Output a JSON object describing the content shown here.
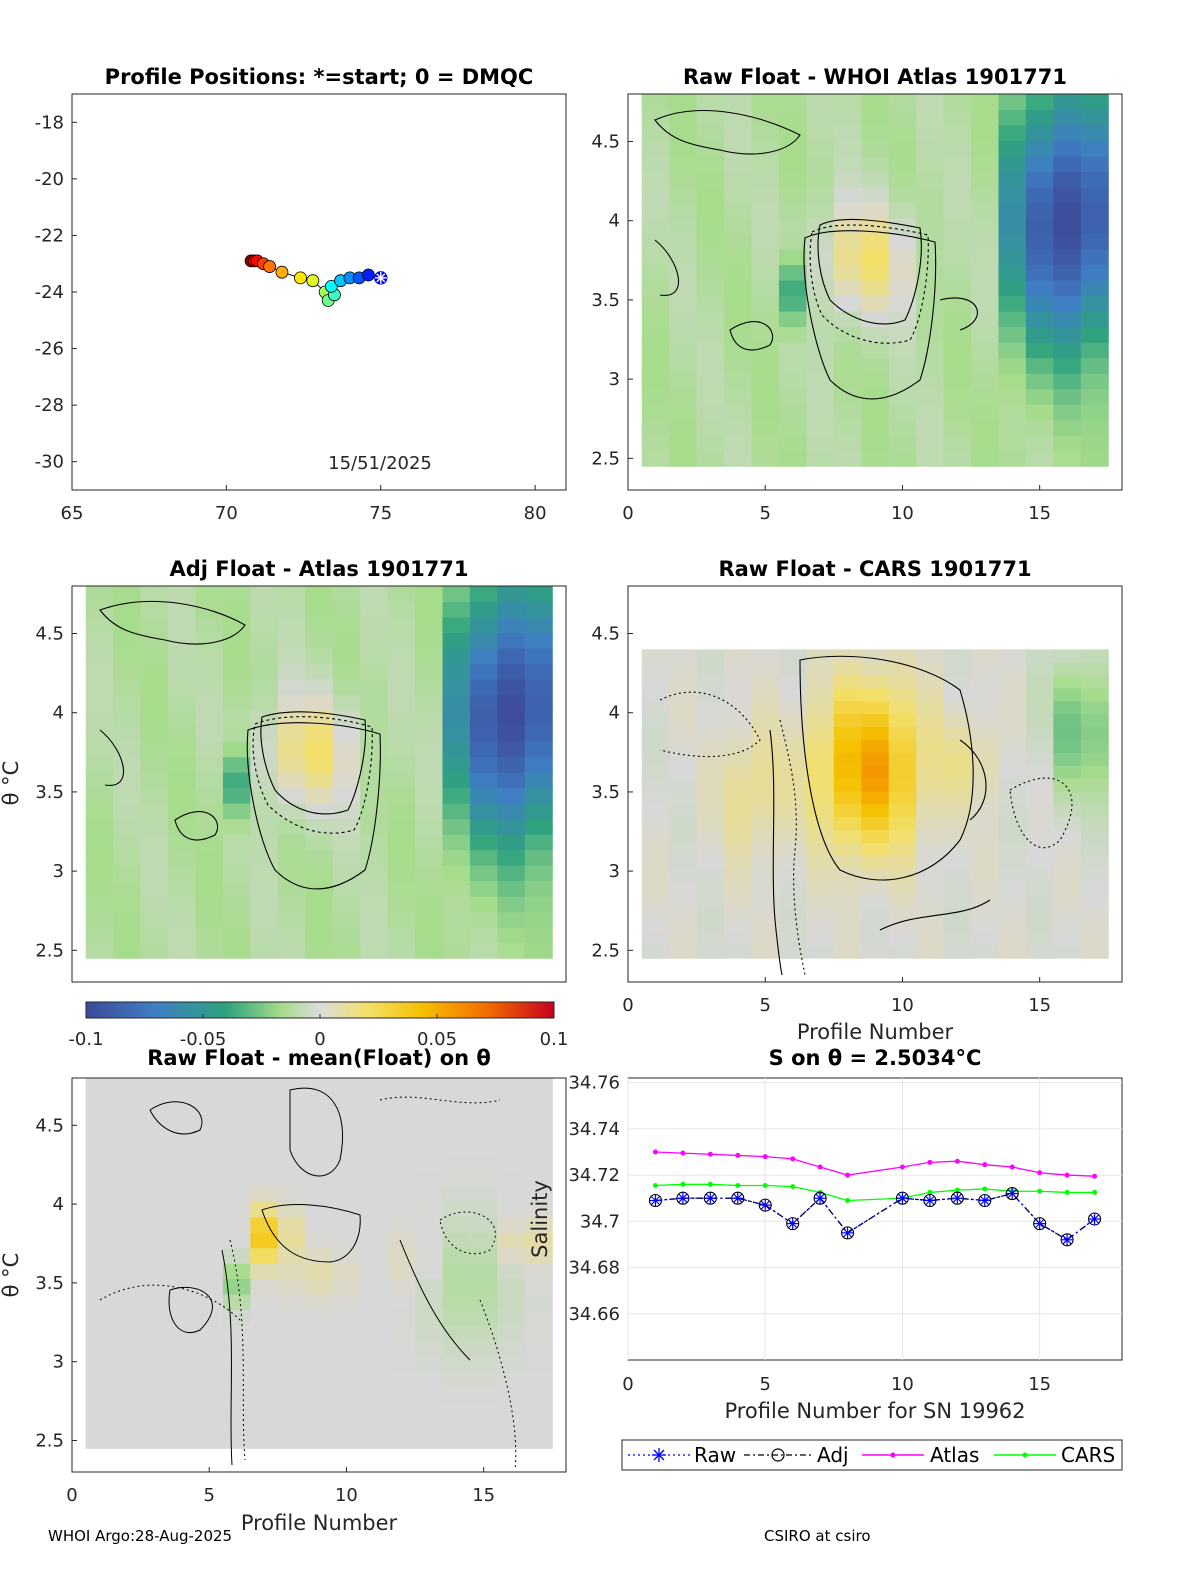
{
  "colors": {
    "raw": "#0000ff",
    "adj": "#000000",
    "atlas": "#ff00ff",
    "cars": "#00ff00",
    "nan": "#d8d8d8"
  },
  "footer": {
    "left": "WHOI Argo:28-Aug-2025",
    "right": "CSIRO at csiro"
  },
  "colorbar": {
    "ticks": [
      "-0.1",
      "-0.05",
      "0",
      "0.05",
      "0.1"
    ],
    "range": [
      -0.1,
      0.1
    ]
  },
  "chart_data": [
    {
      "id": "positions",
      "type": "scatter",
      "title": "Profile Positions: *=start; 0 = DMQC",
      "annotation": "15/51/2025",
      "xlim": [
        65,
        81
      ],
      "ylim": [
        -31,
        -17
      ],
      "xticks": [
        "65",
        "70",
        "75",
        "80"
      ],
      "yticks": [
        "-18",
        "-20",
        "-22",
        "-24",
        "-26",
        "-28",
        "-30"
      ],
      "lon": [
        75.0,
        74.6,
        74.3,
        74.0,
        73.7,
        73.4,
        73.5,
        73.3,
        73.2,
        72.8,
        72.4,
        71.8,
        71.4,
        71.2,
        71.0,
        70.9,
        70.8
      ],
      "lat": [
        -23.5,
        -23.4,
        -23.5,
        -23.5,
        -23.6,
        -23.8,
        -24.1,
        -24.3,
        -24.0,
        -23.6,
        -23.5,
        -23.3,
        -23.1,
        -23.0,
        -22.9,
        -22.9,
        -22.9
      ]
    },
    {
      "id": "whoi",
      "type": "heatmap",
      "title": "Raw Float - WHOI Atlas  1901771",
      "xlim": [
        0,
        18
      ],
      "ylim": [
        2.3,
        4.8
      ],
      "xticks": [
        "0",
        "5",
        "10",
        "15"
      ],
      "yticks": [
        "2.5",
        "3",
        "3.5",
        "4",
        "4.5"
      ],
      "xlabel": "",
      "ylabel": "",
      "theta_top": 4.8,
      "theta_bottom": 2.45
    },
    {
      "id": "adj",
      "type": "heatmap",
      "title": "Adj Float - Atlas  1901771",
      "xlim": [
        0,
        18
      ],
      "ylim": [
        2.3,
        4.8
      ],
      "xticks": [],
      "yticks": [
        "2.5",
        "3",
        "3.5",
        "4",
        "4.5"
      ],
      "xlabel": "",
      "ylabel": "θ °C",
      "theta_top": 4.8,
      "theta_bottom": 2.45
    },
    {
      "id": "cars",
      "type": "heatmap",
      "title": "Raw Float - CARS  1901771",
      "xlim": [
        0,
        18
      ],
      "ylim": [
        2.3,
        4.8
      ],
      "xticks": [
        "0",
        "5",
        "10",
        "15"
      ],
      "yticks": [
        "2.5",
        "3",
        "3.5",
        "4",
        "4.5"
      ],
      "xlabel": "Profile Number",
      "ylabel": "",
      "theta_top": 4.4,
      "theta_bottom": 2.45
    },
    {
      "id": "mean",
      "type": "heatmap",
      "title": "Raw Float - mean(Float) on θ",
      "xlim": [
        0,
        18
      ],
      "ylim": [
        2.3,
        4.8
      ],
      "xticks": [
        "0",
        "5",
        "10",
        "15"
      ],
      "yticks": [
        "2.5",
        "3",
        "3.5",
        "4",
        "4.5"
      ],
      "xlabel": "Profile Number",
      "ylabel": "θ °C",
      "theta_top": 4.8,
      "theta_bottom": 2.45
    },
    {
      "id": "salinity",
      "type": "line",
      "title": "S on θ = 2.5034°C",
      "xlabel": "Profile Number for SN 19962",
      "ylabel": "Salinity",
      "xlim": [
        0,
        18
      ],
      "ylim": [
        34.64,
        34.762
      ],
      "xticks": [
        "0",
        "5",
        "10",
        "15"
      ],
      "yticks": [
        "34.66",
        "34.68",
        "34.7",
        "34.72",
        "34.74",
        "34.76"
      ],
      "x": [
        1,
        2,
        3,
        4,
        5,
        6,
        7,
        8,
        10,
        11,
        12,
        13,
        14,
        15,
        16,
        17
      ],
      "series": [
        {
          "name": "Raw",
          "values": [
            34.709,
            34.71,
            34.71,
            34.71,
            34.707,
            34.699,
            34.71,
            34.695,
            34.71,
            34.709,
            34.71,
            34.709,
            34.712,
            34.699,
            34.692,
            34.701
          ]
        },
        {
          "name": "Adj",
          "values": [
            34.709,
            34.71,
            34.71,
            34.71,
            34.707,
            34.699,
            34.71,
            34.695,
            34.71,
            34.709,
            34.71,
            34.709,
            34.712,
            34.699,
            34.692,
            34.701
          ]
        },
        {
          "name": "Atlas",
          "values": [
            34.73,
            34.7295,
            34.729,
            34.7285,
            34.728,
            34.727,
            34.7235,
            34.72,
            34.7235,
            34.7255,
            34.726,
            34.7245,
            34.7235,
            34.721,
            34.72,
            34.7195
          ]
        },
        {
          "name": "CARS",
          "values": [
            34.7155,
            34.716,
            34.716,
            34.7155,
            34.7155,
            34.715,
            34.7125,
            34.709,
            34.71,
            34.7125,
            34.7135,
            34.714,
            34.713,
            34.713,
            34.7125,
            34.7125
          ]
        }
      ],
      "legend": [
        "Raw",
        "Adj",
        "Atlas",
        "CARS"
      ]
    }
  ]
}
